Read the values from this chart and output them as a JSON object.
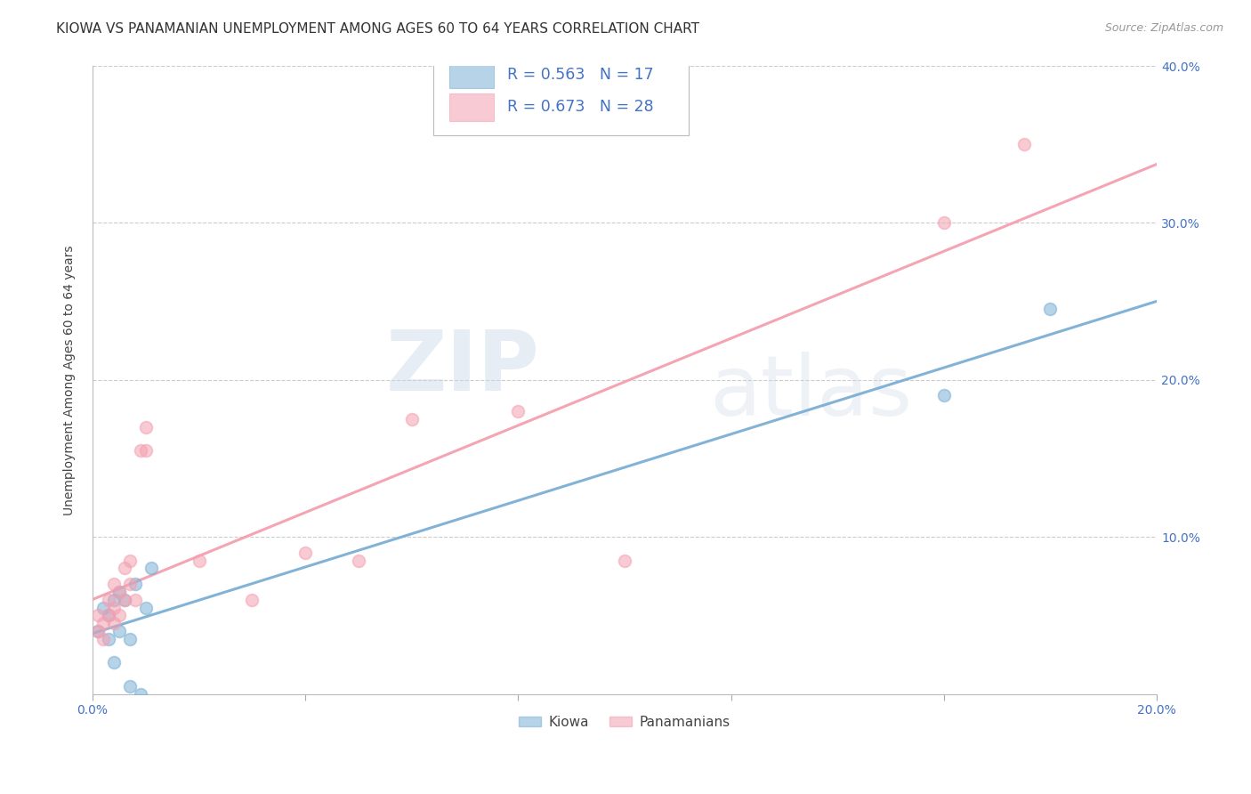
{
  "title": "KIOWA VS PANAMANIAN UNEMPLOYMENT AMONG AGES 60 TO 64 YEARS CORRELATION CHART",
  "source": "Source: ZipAtlas.com",
  "ylabel": "Unemployment Among Ages 60 to 64 years",
  "xlim": [
    0.0,
    0.2
  ],
  "ylim": [
    0.0,
    0.4
  ],
  "xticks": [
    0.0,
    0.04,
    0.08,
    0.12,
    0.16,
    0.2
  ],
  "yticks": [
    0.0,
    0.1,
    0.2,
    0.3,
    0.4
  ],
  "xtick_labels": [
    "0.0%",
    "",
    "",
    "",
    "",
    "20.0%"
  ],
  "ytick_labels": [
    "",
    "10.0%",
    "20.0%",
    "30.0%",
    "40.0%"
  ],
  "kiowa_R": "0.563",
  "kiowa_N": "17",
  "panama_R": "0.673",
  "panama_N": "28",
  "kiowa_color": "#7BAFD4",
  "panama_color": "#F4A0B0",
  "kiowa_x": [
    0.001,
    0.002,
    0.003,
    0.003,
    0.004,
    0.004,
    0.005,
    0.005,
    0.006,
    0.007,
    0.007,
    0.008,
    0.009,
    0.01,
    0.011,
    0.16,
    0.18
  ],
  "kiowa_y": [
    0.04,
    0.055,
    0.035,
    0.05,
    0.02,
    0.06,
    0.065,
    0.04,
    0.06,
    0.005,
    0.035,
    0.07,
    0.0,
    0.055,
    0.08,
    0.19,
    0.245
  ],
  "panama_x": [
    0.001,
    0.001,
    0.002,
    0.002,
    0.003,
    0.003,
    0.004,
    0.004,
    0.004,
    0.005,
    0.005,
    0.006,
    0.006,
    0.007,
    0.007,
    0.008,
    0.009,
    0.01,
    0.01,
    0.02,
    0.03,
    0.04,
    0.05,
    0.06,
    0.08,
    0.1,
    0.16,
    0.175
  ],
  "panama_y": [
    0.04,
    0.05,
    0.035,
    0.045,
    0.05,
    0.06,
    0.045,
    0.055,
    0.07,
    0.05,
    0.065,
    0.06,
    0.08,
    0.07,
    0.085,
    0.06,
    0.155,
    0.155,
    0.17,
    0.085,
    0.06,
    0.09,
    0.085,
    0.175,
    0.18,
    0.085,
    0.3,
    0.35
  ],
  "background_color": "#FFFFFF",
  "grid_color": "#CCCCCC",
  "watermark_zip": "ZIP",
  "watermark_atlas": "atlas",
  "title_fontsize": 11,
  "label_fontsize": 10,
  "tick_fontsize": 10,
  "scatter_size": 100,
  "scatter_alpha": 0.55
}
